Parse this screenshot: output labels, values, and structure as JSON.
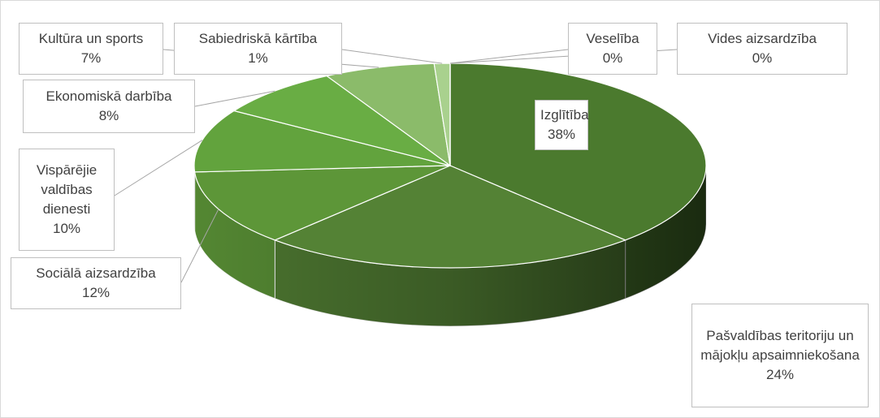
{
  "chart_data": {
    "type": "pie",
    "categories": [
      "Izglītība",
      "Pašvaldības teritoriju un mājokļu apsaimniekošana",
      "Sociālā aizsardzība",
      "Vispārējie valdības dienesti",
      "Ekonomiskā darbība",
      "Kultūra un sports",
      "Sabiedriskā kārtība",
      "Veselība",
      "Vides aizsardzība"
    ],
    "values": [
      38,
      24,
      12,
      10,
      8,
      7,
      1,
      0,
      0
    ],
    "value_labels": [
      "38%",
      "24%",
      "12%",
      "10%",
      "8%",
      "7%",
      "1%",
      "0%",
      "0%"
    ],
    "colors": [
      "#4b7a2e",
      "#548235",
      "#5d9638",
      "#62a33d",
      "#69ad44",
      "#8bbb6a",
      "#a9d18e",
      "#c5e0b4",
      "#e2efda"
    ]
  }
}
